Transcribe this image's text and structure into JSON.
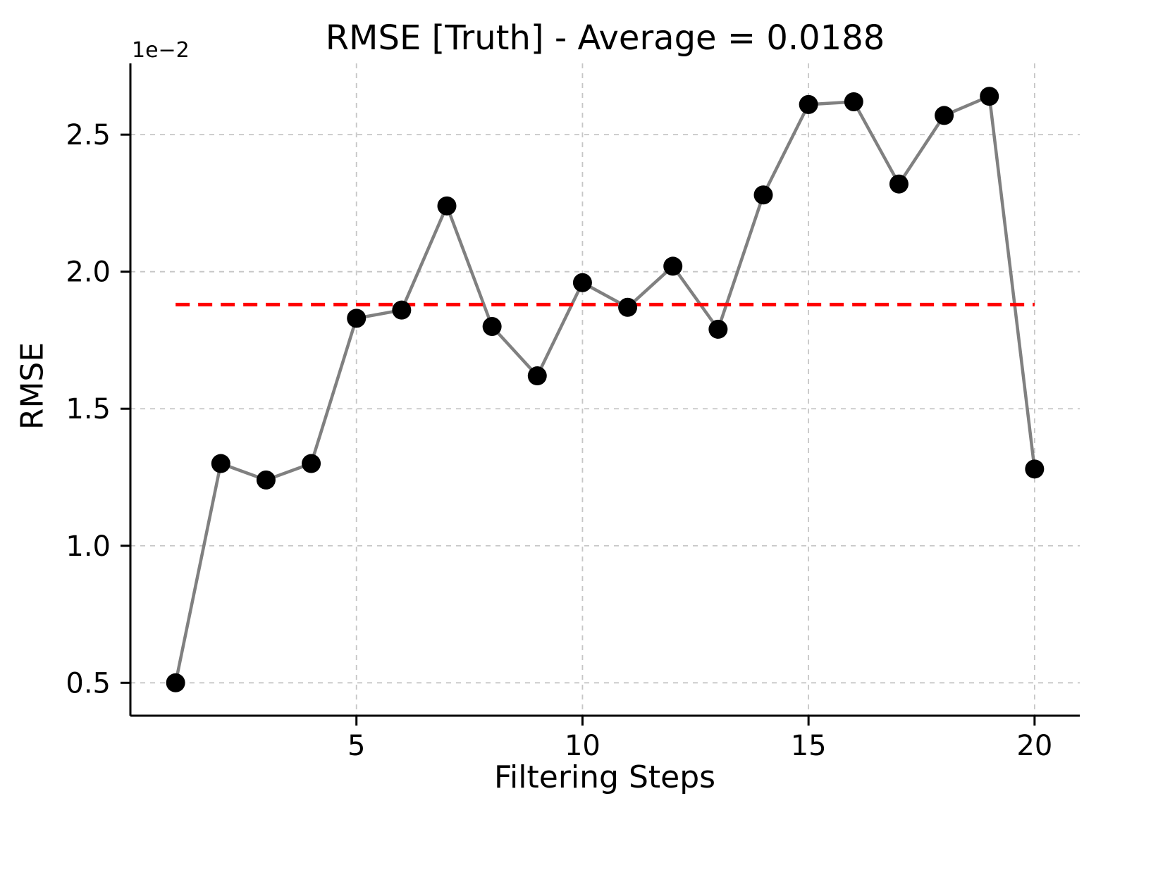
{
  "chart_data": {
    "type": "line",
    "title": "RMSE [Truth] - Average = 0.0188",
    "xlabel": "Filtering Steps",
    "ylabel": "RMSE",
    "y_scale_offset_text": "1e−2",
    "x": [
      1,
      2,
      3,
      4,
      5,
      6,
      7,
      8,
      9,
      10,
      11,
      12,
      13,
      14,
      15,
      16,
      17,
      18,
      19,
      20
    ],
    "y_times_1e2": [
      0.5,
      1.3,
      1.24,
      1.3,
      1.83,
      1.86,
      2.24,
      1.8,
      1.62,
      1.96,
      1.87,
      2.02,
      1.79,
      2.28,
      2.61,
      2.62,
      2.32,
      2.57,
      2.64,
      1.28
    ],
    "average": 0.0188,
    "average_y_times_1e2": 1.88,
    "xticks": {
      "values": [
        5,
        10,
        15,
        20
      ],
      "labels": [
        "5",
        "10",
        "15",
        "20"
      ]
    },
    "yticks": {
      "values": [
        0.5,
        1.0,
        1.5,
        2.0,
        2.5
      ],
      "labels": [
        "0.5",
        "1.0",
        "1.5",
        "2.0",
        "2.5"
      ]
    },
    "xlim": [
      0,
      21
    ],
    "ylim": [
      0.38,
      2.76
    ],
    "grid": true,
    "legend_position": "none",
    "styles": {
      "line_color": "#808080",
      "marker_color": "#000000",
      "average_line_color": "#ff0000",
      "grid_color": "#c6c6c6",
      "spine_color": "#000000",
      "text_color": "#000000",
      "background": "#ffffff"
    }
  }
}
